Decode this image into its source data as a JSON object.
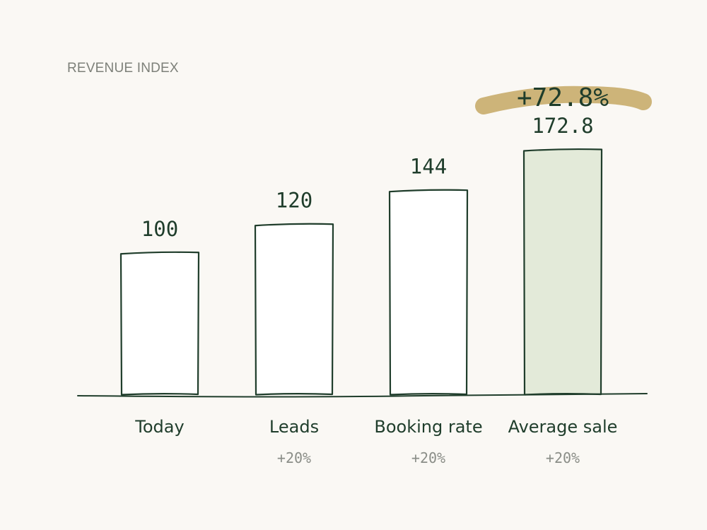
{
  "chart_data": {
    "type": "bar",
    "ylabel": "REVENUE INDEX",
    "xlabel": "",
    "title": "",
    "categories": [
      "Today",
      "Leads",
      "Booking rate",
      "Average sale"
    ],
    "values": [
      100,
      120,
      144,
      172.8
    ],
    "value_labels": [
      "100",
      "120",
      "144",
      "172.8"
    ],
    "change_labels": [
      "",
      "+20%",
      "+20%",
      "+20%"
    ],
    "highlight": {
      "index": 3,
      "label": "+72.8%"
    },
    "ylim": [
      0,
      172.8
    ],
    "grid": false,
    "legend": "none"
  },
  "colors": {
    "background": "#faf8f4",
    "ink": "#1f3d2b",
    "bar_fill": "#ffffff",
    "highlight_bar_fill": "#e3ead9",
    "highlight_marker": "#c8ac6b",
    "muted_text": "#8a8d87"
  }
}
